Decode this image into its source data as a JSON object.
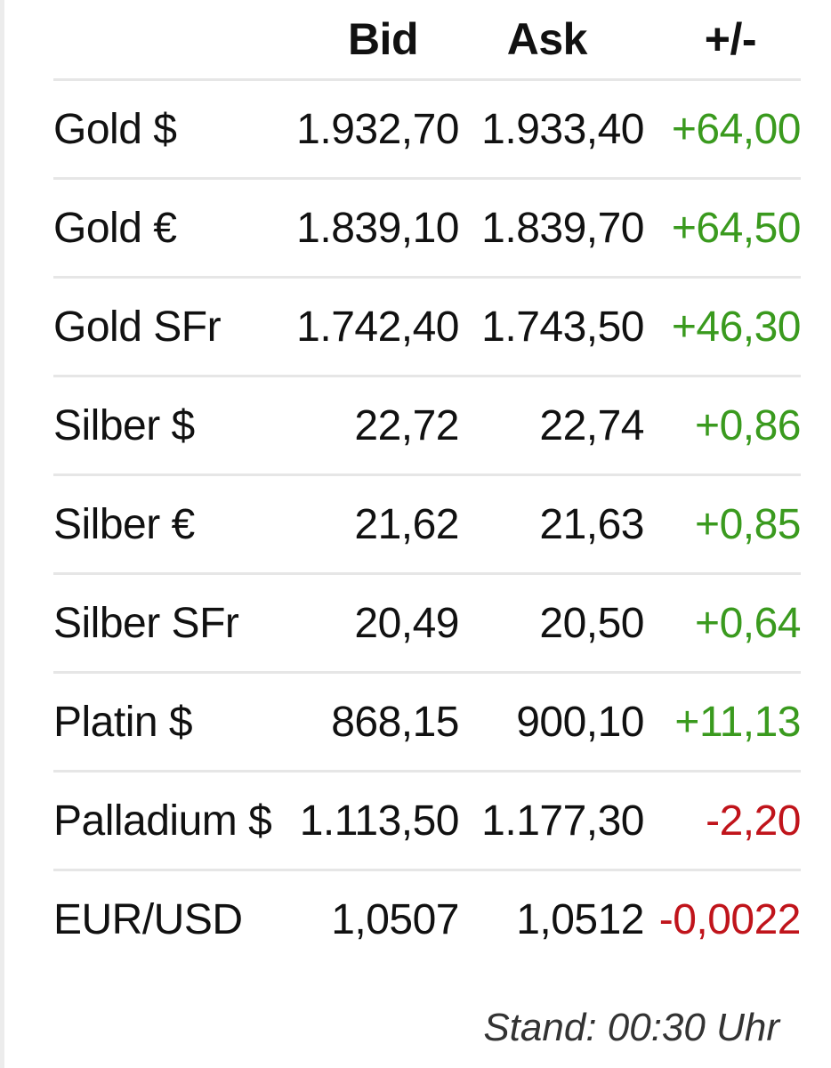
{
  "table": {
    "headers": {
      "bid": "Bid",
      "ask": "Ask",
      "change": "+/-"
    },
    "rows": [
      {
        "name": "Gold $",
        "bid": "1.932,70",
        "ask": "1.933,40",
        "change": "+64,00",
        "direction": "up"
      },
      {
        "name": "Gold €",
        "bid": "1.839,10",
        "ask": "1.839,70",
        "change": "+64,50",
        "direction": "up"
      },
      {
        "name": "Gold SFr",
        "bid": "1.742,40",
        "ask": "1.743,50",
        "change": "+46,30",
        "direction": "up"
      },
      {
        "name": "Silber $",
        "bid": "22,72",
        "ask": "22,74",
        "change": "+0,86",
        "direction": "up"
      },
      {
        "name": "Silber €",
        "bid": "21,62",
        "ask": "21,63",
        "change": "+0,85",
        "direction": "up"
      },
      {
        "name": "Silber SFr",
        "bid": "20,49",
        "ask": "20,50",
        "change": "+0,64",
        "direction": "up"
      },
      {
        "name": "Platin $",
        "bid": "868,15",
        "ask": "900,10",
        "change": "+11,13",
        "direction": "up"
      },
      {
        "name": "Palladium $",
        "bid": "1.113,50",
        "ask": "1.177,30",
        "change": "-2,20",
        "direction": "down"
      },
      {
        "name": "EUR/USD",
        "bid": "1,0507",
        "ask": "1,0512",
        "change": "-0,0022",
        "direction": "down"
      }
    ]
  },
  "footer": {
    "timestamp": "Stand: 00:30 Uhr"
  },
  "colors": {
    "positive": "#3a9a1e",
    "negative": "#c0141b",
    "divider": "#e6e6e6"
  }
}
